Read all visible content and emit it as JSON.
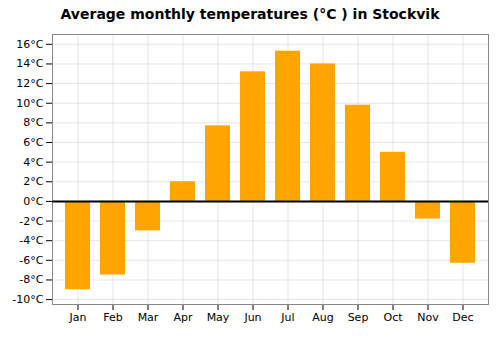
{
  "chart_data": {
    "type": "bar",
    "title": "Average monthly temperatures (°C ) in Stockvik",
    "categories": [
      "Jan",
      "Feb",
      "Mar",
      "Apr",
      "May",
      "Jun",
      "Jul",
      "Aug",
      "Sep",
      "Oct",
      "Nov",
      "Dec"
    ],
    "values": [
      -9.0,
      -7.5,
      -3.0,
      2.0,
      7.7,
      13.2,
      15.3,
      14.0,
      9.8,
      5.0,
      -1.8,
      -6.3
    ],
    "color": "#FFA500",
    "ylim": [
      -10.5,
      17
    ],
    "yticks": [
      {
        "value": -10,
        "label": "-10°C"
      },
      {
        "value": -8,
        "label": "-8°C"
      },
      {
        "value": -6,
        "label": "-6°C"
      },
      {
        "value": -4,
        "label": "-4°C"
      },
      {
        "value": -2,
        "label": "-2°C"
      },
      {
        "value": 0,
        "label": "0°C"
      },
      {
        "value": 2,
        "label": "2°C"
      },
      {
        "value": 4,
        "label": "4°C"
      },
      {
        "value": 6,
        "label": "6°C"
      },
      {
        "value": 8,
        "label": "8°C"
      },
      {
        "value": 10,
        "label": "10°C"
      },
      {
        "value": 12,
        "label": "12°C"
      },
      {
        "value": 14,
        "label": "14°C"
      },
      {
        "value": 16,
        "label": "16°C"
      }
    ],
    "grid": true
  }
}
